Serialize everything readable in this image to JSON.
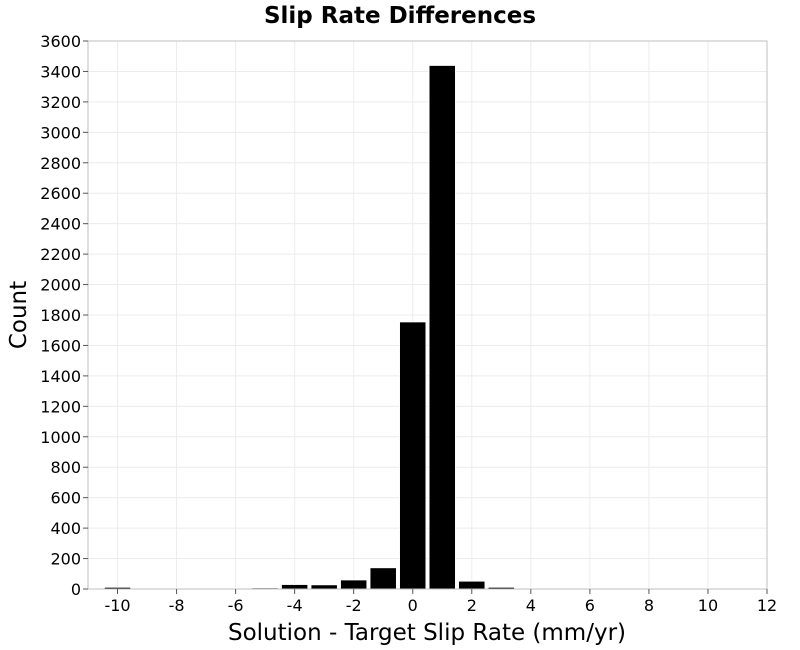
{
  "chart_data": {
    "type": "bar",
    "title": "Slip Rate Differences",
    "xlabel": "Solution - Target Slip Rate (mm/yr)",
    "ylabel": "Count",
    "xlim": [
      -11,
      12
    ],
    "ylim": [
      0,
      3600
    ],
    "x_ticks": [
      -10,
      -8,
      -6,
      -4,
      -2,
      0,
      2,
      4,
      6,
      8,
      10,
      12
    ],
    "y_ticks": [
      0,
      200,
      400,
      600,
      800,
      1000,
      1200,
      1400,
      1600,
      1800,
      2000,
      2200,
      2400,
      2600,
      2800,
      3000,
      3200,
      3400,
      3600
    ],
    "bin_width": 1,
    "bin_centers": [
      -10,
      -9,
      -8,
      -7,
      -6,
      -5,
      -4,
      -3,
      -2,
      -1,
      0,
      1,
      2,
      3,
      4,
      5,
      6,
      7,
      8,
      9,
      10,
      11
    ],
    "values": [
      12,
      3,
      3,
      5,
      4,
      8,
      30,
      28,
      60,
      140,
      1755,
      3440,
      52,
      12,
      6,
      6,
      3,
      1,
      2,
      2,
      1,
      1
    ],
    "grid": true,
    "colors": {
      "bar_fill": "#000000",
      "bar_edge": "#ffffff",
      "grid": "#ececec",
      "frame": "#bfbfbf"
    }
  }
}
